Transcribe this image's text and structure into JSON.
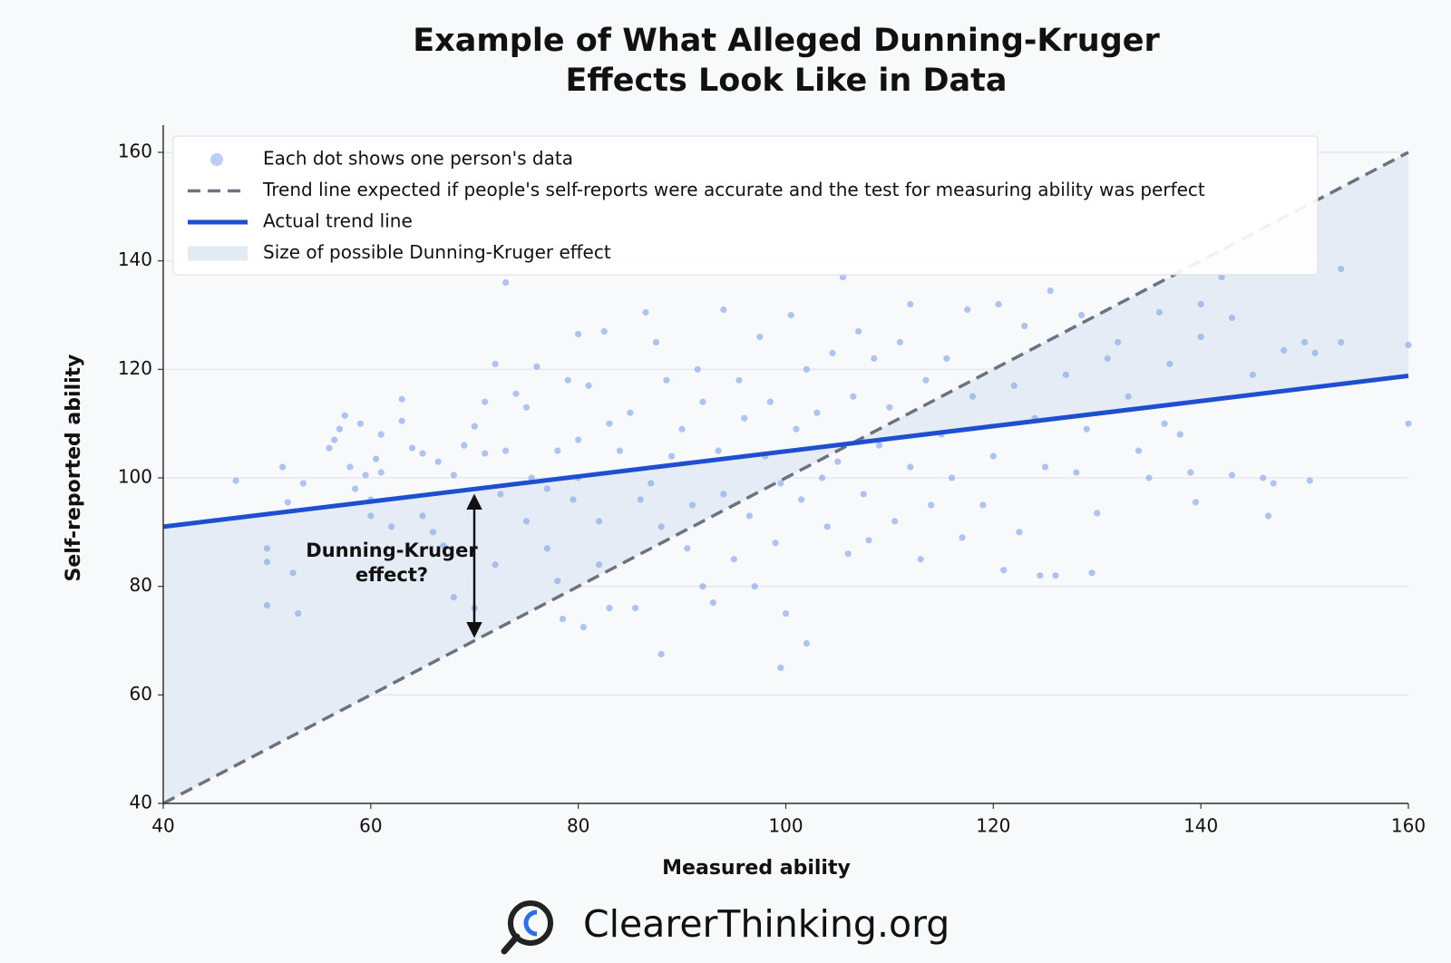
{
  "chart_data": {
    "type": "scatter",
    "title": [
      "Example of What Alleged Dunning-Kruger",
      "Effects Look Like in Data"
    ],
    "xlabel": "Measured ability",
    "ylabel": "Self-reported ability",
    "xlim": [
      40,
      160
    ],
    "ylim": [
      40,
      160
    ],
    "xticks": [
      40,
      60,
      80,
      100,
      120,
      140,
      160
    ],
    "yticks": [
      40,
      60,
      80,
      100,
      120,
      140,
      160
    ],
    "grid": true,
    "legend": "upper left",
    "series": [
      {
        "name": "Each dot shows one person's data",
        "type": "scatter",
        "color": "#8fadea",
        "x": [
          47,
          50,
          50,
          50,
          51.5,
          52,
          52.5,
          53,
          53.5,
          56,
          56.5,
          57,
          57.5,
          58,
          58.5,
          59,
          59.5,
          60,
          60,
          60.5,
          61,
          61,
          62,
          63,
          63,
          64,
          65,
          65,
          66,
          66.5,
          67,
          68,
          68,
          69,
          70,
          70,
          71,
          71,
          72,
          72,
          72.5,
          73,
          73,
          74,
          75,
          75,
          75.5,
          76,
          77,
          77,
          78,
          78,
          78.5,
          79,
          79.5,
          80,
          80,
          80,
          80.5,
          81,
          82,
          82,
          82.5,
          83,
          83,
          84,
          85,
          85.5,
          86,
          86.5,
          87,
          87.5,
          88,
          88,
          88.5,
          89,
          90,
          90.5,
          91,
          91.5,
          92,
          92,
          93,
          93.5,
          94,
          94,
          95,
          95.5,
          96,
          96.5,
          97,
          97.5,
          98,
          98.5,
          99,
          99.5,
          99.5,
          100,
          100.5,
          101,
          101.5,
          102,
          102,
          103,
          103.5,
          104,
          104.5,
          105,
          105.5,
          106,
          106.5,
          107,
          107.5,
          108,
          108.5,
          109,
          110,
          110.5,
          111,
          112,
          112,
          113,
          113.5,
          114,
          115,
          115.5,
          116,
          117,
          117.5,
          118,
          119,
          120,
          120.5,
          121,
          122,
          122.5,
          123,
          124,
          124.5,
          125,
          125.5,
          126,
          127,
          128,
          128.5,
          129,
          129.5,
          130,
          131,
          132,
          133,
          134,
          135,
          136,
          136.5,
          137,
          138,
          139,
          139.5,
          140,
          140,
          142,
          143,
          143,
          145,
          146,
          146.5,
          147,
          148,
          150,
          150.5,
          151,
          153.5,
          153.5,
          160,
          160
        ],
        "values": [
          99.5,
          87,
          84.5,
          76.5,
          102,
          95.5,
          82.5,
          75,
          99,
          105.5,
          107,
          109,
          111.5,
          102,
          98,
          110,
          100.5,
          96,
          93,
          103.5,
          101,
          108,
          91,
          114.5,
          110.5,
          105.5,
          104.5,
          93,
          90,
          103,
          87.5,
          100.5,
          78,
          106,
          109.5,
          76,
          104.5,
          114,
          84,
          121,
          97,
          136,
          105,
          115.5,
          113,
          92,
          100,
          120.5,
          87,
          98,
          105,
          81,
          74,
          118,
          96,
          126.5,
          107,
          100,
          72.5,
          117,
          92,
          84,
          127,
          110,
          76,
          105,
          112,
          76,
          96,
          130.5,
          99,
          125,
          67.5,
          91,
          118,
          104,
          109,
          87,
          95,
          120,
          80,
          114,
          77,
          105,
          131,
          97,
          85,
          118,
          111,
          93,
          80,
          126,
          104,
          114,
          88,
          99,
          65,
          75,
          130,
          109,
          96,
          69.5,
          120,
          112,
          100,
          91,
          123,
          103,
          137,
          86,
          115,
          127,
          97,
          88.5,
          122,
          106,
          113,
          92,
          125,
          102,
          132,
          85,
          118,
          95,
          108,
          122,
          100,
          89,
          131,
          115,
          95,
          104,
          132,
          83,
          117,
          90,
          128,
          111,
          82,
          102,
          134.5,
          82,
          119,
          101,
          130,
          109,
          82.5,
          93.5,
          122,
          125,
          115,
          105,
          100,
          130.5,
          110,
          121,
          108,
          101,
          95.5,
          126,
          132,
          137,
          129.5,
          100.5,
          119,
          100,
          93,
          99,
          123.5,
          125,
          99.5,
          123,
          125,
          138.5,
          124.5,
          110
        ]
      },
      {
        "name": "Trend line expected if people's self-reports were accurate and the test for measuring ability was perfect",
        "type": "dashed-line",
        "color": "#6b7280",
        "x": [
          40,
          160
        ],
        "values": [
          40,
          160
        ]
      },
      {
        "name": "Actual trend line",
        "type": "line",
        "color": "#1f4fd1",
        "x": [
          40,
          160
        ],
        "values": [
          91,
          118.8
        ]
      },
      {
        "name": "Size of possible Dunning-Kruger effect",
        "type": "band",
        "color": "#e2eaf4"
      }
    ],
    "annotation": [
      "Dunning-Kruger",
      "effect?"
    ],
    "footer": "ClearerThinking.org"
  }
}
